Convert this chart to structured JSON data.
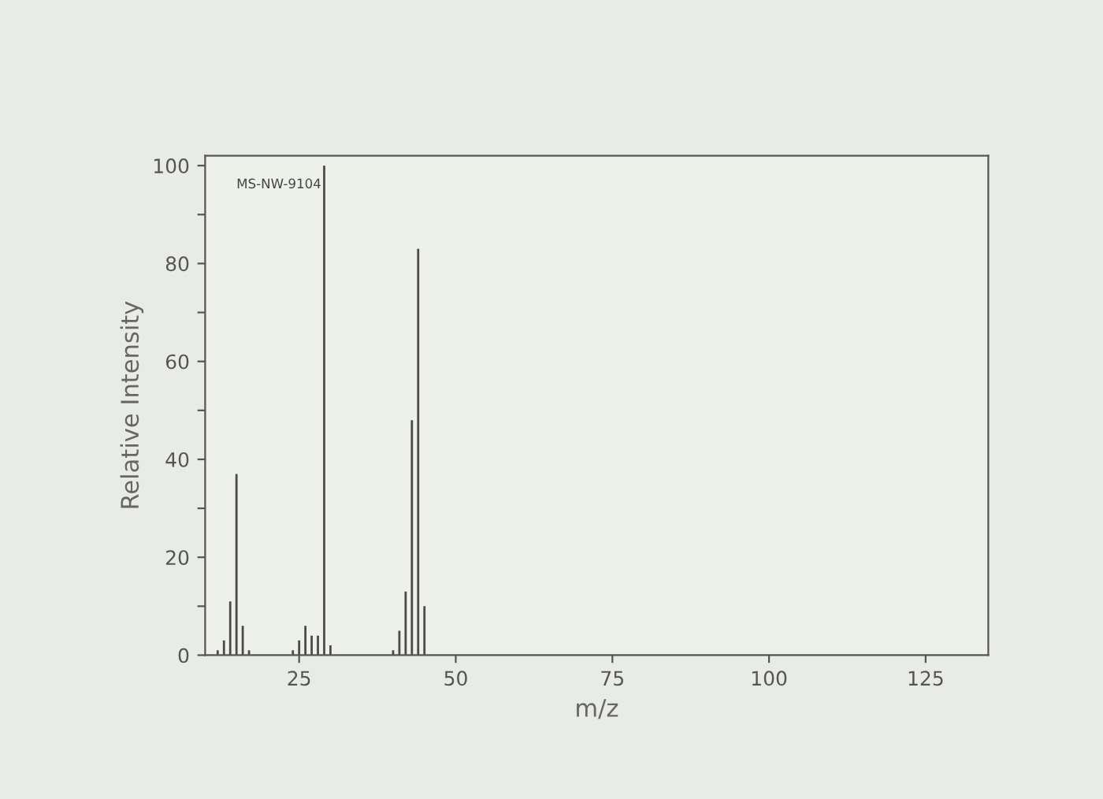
{
  "chart_data": {
    "type": "bar",
    "xlabel": "m/z",
    "ylabel": "Relative Intensity",
    "annotations": [
      "MS-NW-9104"
    ],
    "x": [
      12,
      13,
      14,
      15,
      16,
      17,
      24,
      25,
      26,
      27,
      28,
      29,
      30,
      40,
      41,
      42,
      43,
      44,
      45
    ],
    "values": [
      1,
      3,
      11,
      37,
      6,
      1,
      1,
      3,
      6,
      4,
      4,
      100,
      2,
      1,
      5,
      13,
      48,
      83,
      10
    ],
    "color": "#4a4a4a",
    "xlim": [
      10,
      135
    ],
    "xticks": [
      25,
      50,
      75,
      100,
      125
    ],
    "ylim": [
      0,
      102
    ],
    "yticks": [
      0,
      {
        "value": 10,
        "label": null
      },
      20,
      {
        "value": 30,
        "label": null
      },
      40,
      {
        "value": 50,
        "label": null
      },
      60,
      {
        "value": 70,
        "label": null
      },
      80,
      {
        "value": 90,
        "label": null
      },
      100
    ],
    "grid": false
  }
}
